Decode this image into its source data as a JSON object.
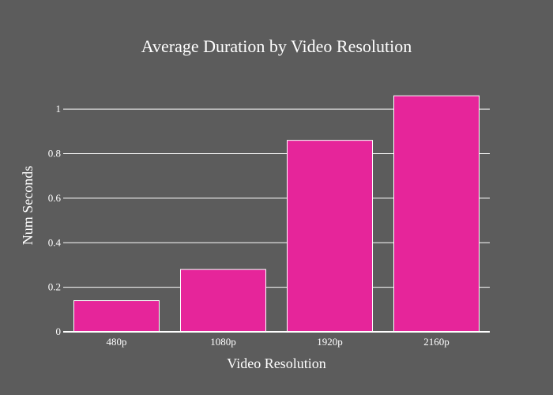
{
  "chart_data": {
    "type": "bar",
    "title": "Average Duration by Video Resolution",
    "xlabel": "Video Resolution",
    "ylabel": "Num Seconds",
    "categories": [
      "480p",
      "1080p",
      "1920p",
      "2160p"
    ],
    "values": [
      0.14,
      0.28,
      0.86,
      1.06
    ],
    "ylim": [
      0,
      1.1
    ],
    "yticks": [
      0,
      0.2,
      0.4,
      0.6,
      0.8,
      1
    ],
    "ytick_labels": [
      "0",
      "0.2",
      "0.4",
      "0.6",
      "0.8",
      "1"
    ],
    "grid": true,
    "legend": "none",
    "colors": {
      "background": "#5c5c5c",
      "bar_fill": "#e6259a",
      "bar_stroke": "#ffffff",
      "grid": "#ffffff",
      "text": "#ffffff"
    }
  }
}
